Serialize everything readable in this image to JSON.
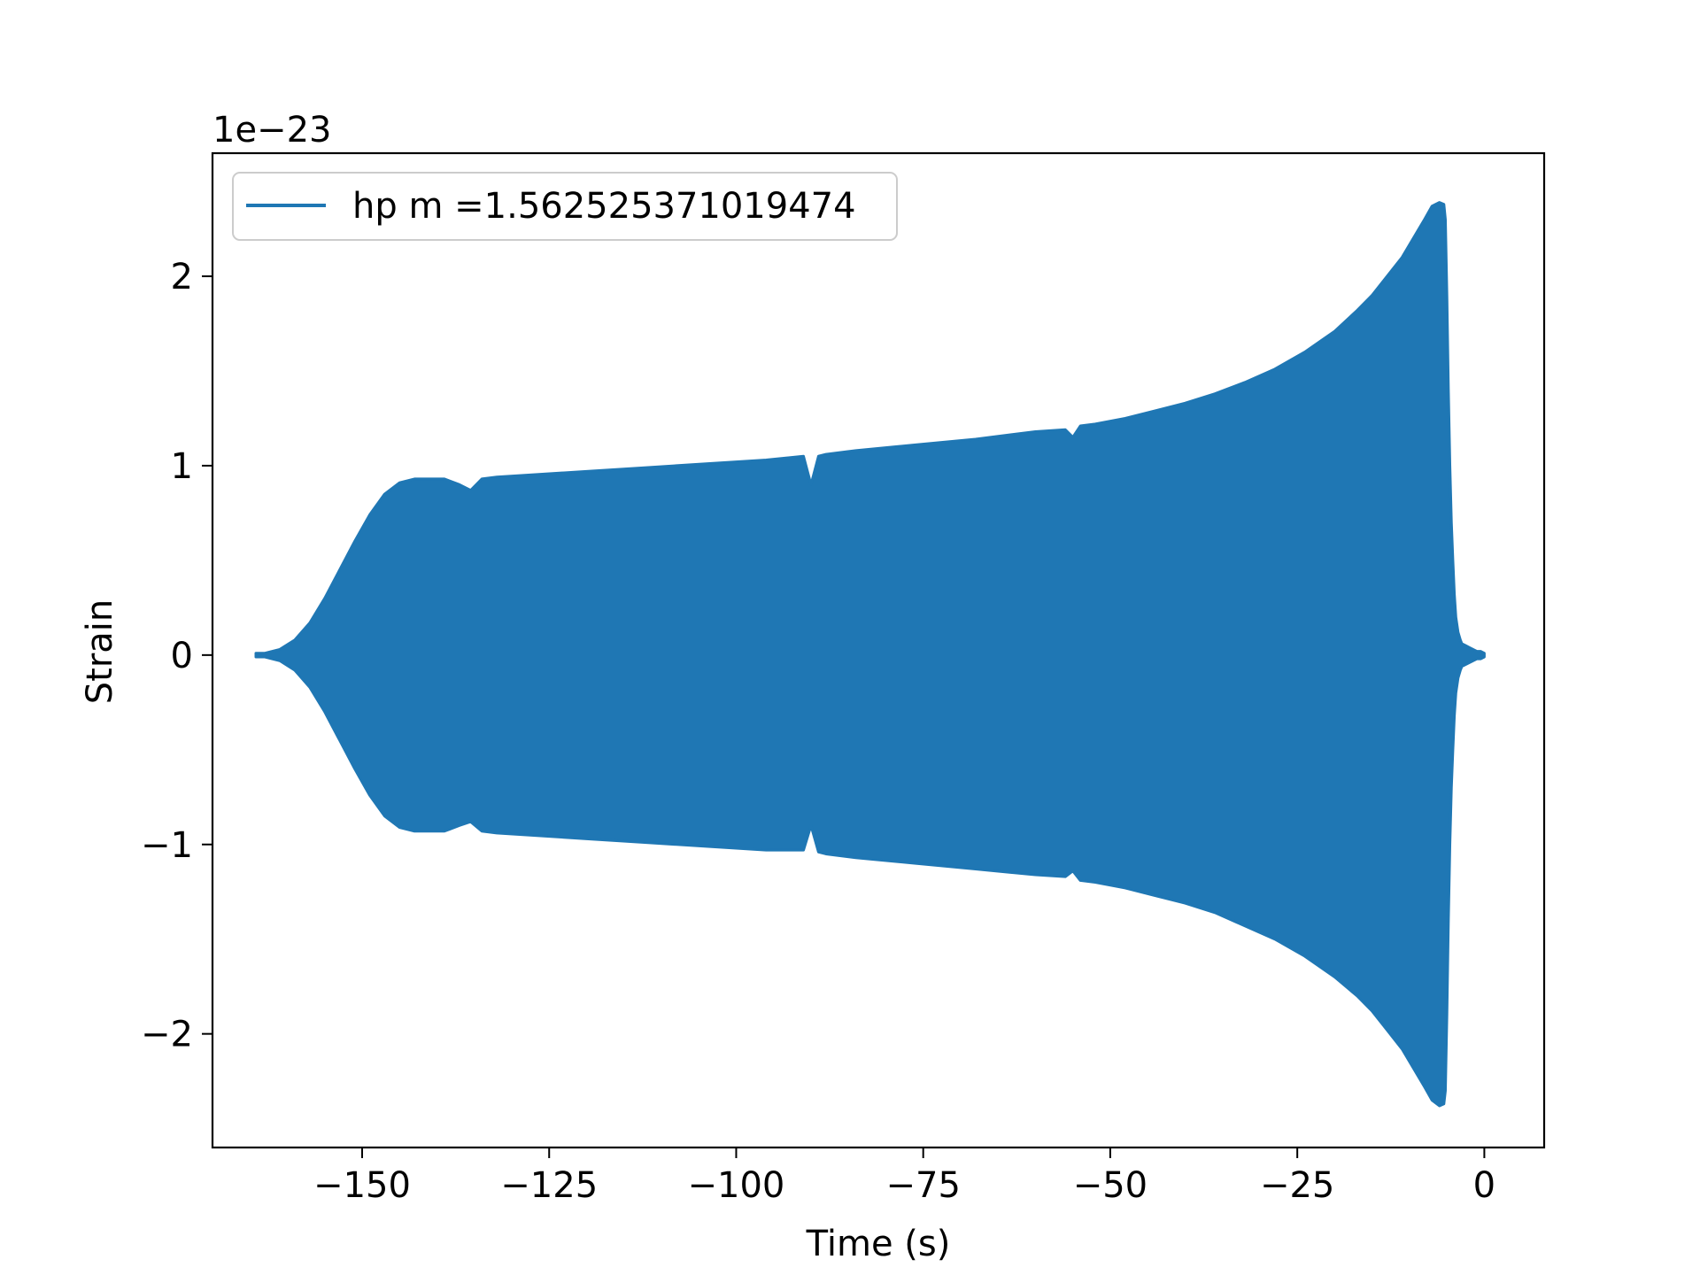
{
  "chart_data": {
    "type": "line",
    "title": "",
    "xlabel": "Time (s)",
    "ylabel": "Strain",
    "y_offset_text": "1e−23",
    "xlim": [
      -170,
      8
    ],
    "ylim": [
      -2.6,
      2.65
    ],
    "y_scale_factor": 1e-23,
    "x_ticks": [
      -150,
      -125,
      -100,
      -75,
      -50,
      -25,
      0
    ],
    "x_tick_labels": [
      "−150",
      "−125",
      "−100",
      "−75",
      "−50",
      "−25",
      "0"
    ],
    "y_ticks": [
      -2,
      -1,
      0,
      1,
      2
    ],
    "y_tick_labels": [
      "−2",
      "−1",
      "0",
      "1",
      "2"
    ],
    "grid": false,
    "legend_position": "top-left",
    "series": [
      {
        "name": "hp m =1.562525371019474",
        "color": "#1f77b4",
        "style": "dense oscillation filling envelope",
        "envelope": {
          "x": [
            -164.2,
            -163,
            -161,
            -159,
            -157,
            -155,
            -153,
            -151,
            -149,
            -147,
            -145,
            -143,
            -141,
            -139,
            -137,
            -135.5,
            -134,
            -132,
            -128,
            -120,
            -112,
            -104,
            -96,
            -91,
            -90,
            -89,
            -88,
            -84,
            -76,
            -68,
            -60,
            -56,
            -55,
            -54,
            -52,
            -48,
            -44,
            -40,
            -36,
            -32,
            -28,
            -24,
            -20,
            -17,
            -15,
            -13,
            -11,
            -9.5,
            -8,
            -7,
            -6,
            -5.4,
            -5.2,
            -5,
            -4.8,
            -4.6,
            -4.4,
            -4.2,
            -4,
            -3.8,
            -3.5,
            -3.2,
            -3,
            -2.5,
            -2,
            -1.5,
            -1,
            -0.5,
            0
          ],
          "upper": [
            0.01,
            0.01,
            0.03,
            0.08,
            0.17,
            0.3,
            0.45,
            0.6,
            0.74,
            0.85,
            0.91,
            0.93,
            0.93,
            0.93,
            0.9,
            0.87,
            0.93,
            0.94,
            0.95,
            0.97,
            0.99,
            1.01,
            1.03,
            1.05,
            0.9,
            1.05,
            1.06,
            1.08,
            1.11,
            1.14,
            1.18,
            1.19,
            1.15,
            1.21,
            1.22,
            1.25,
            1.29,
            1.33,
            1.38,
            1.44,
            1.51,
            1.6,
            1.71,
            1.82,
            1.9,
            2.0,
            2.1,
            2.2,
            2.3,
            2.37,
            2.39,
            2.38,
            2.3,
            1.9,
            1.4,
            1.0,
            0.7,
            0.5,
            0.32,
            0.2,
            0.12,
            0.08,
            0.06,
            0.05,
            0.04,
            0.03,
            0.02,
            0.02,
            0.01
          ],
          "lower": [
            -0.01,
            -0.01,
            -0.03,
            -0.08,
            -0.17,
            -0.3,
            -0.45,
            -0.6,
            -0.74,
            -0.85,
            -0.91,
            -0.93,
            -0.93,
            -0.93,
            -0.9,
            -0.88,
            -0.93,
            -0.94,
            -0.95,
            -0.97,
            -0.99,
            -1.01,
            -1.03,
            -1.03,
            -0.9,
            -1.04,
            -1.05,
            -1.07,
            -1.1,
            -1.13,
            -1.16,
            -1.17,
            -1.14,
            -1.19,
            -1.2,
            -1.23,
            -1.27,
            -1.31,
            -1.36,
            -1.43,
            -1.5,
            -1.59,
            -1.7,
            -1.8,
            -1.88,
            -1.98,
            -2.08,
            -2.18,
            -2.28,
            -2.35,
            -2.38,
            -2.37,
            -2.3,
            -1.9,
            -1.4,
            -1.0,
            -0.7,
            -0.5,
            -0.32,
            -0.2,
            -0.12,
            -0.08,
            -0.06,
            -0.05,
            -0.04,
            -0.03,
            -0.02,
            -0.02,
            -0.01
          ]
        }
      }
    ]
  }
}
